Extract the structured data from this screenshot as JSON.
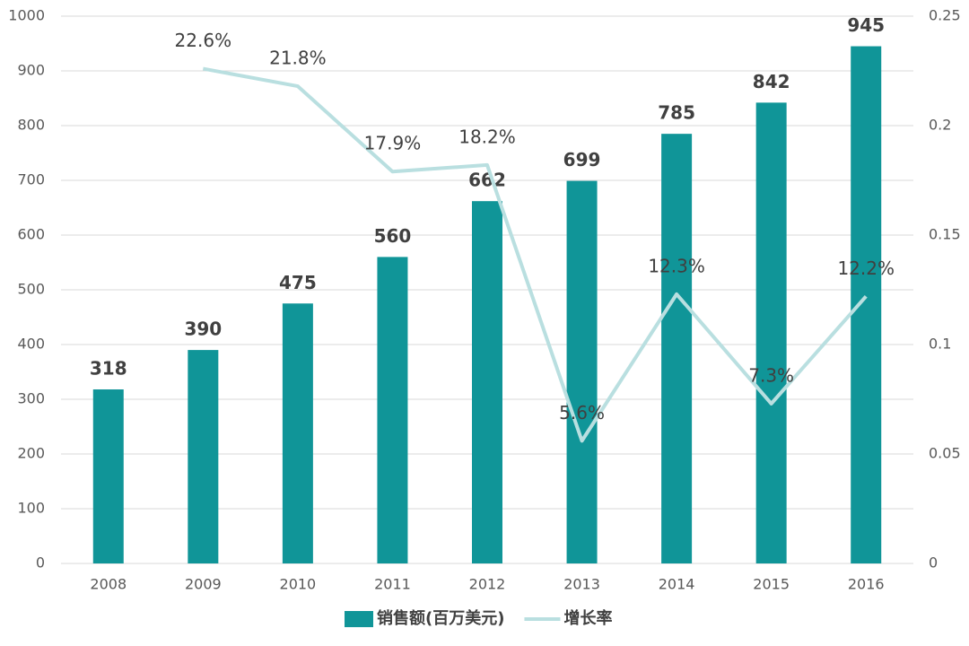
{
  "chart_data": {
    "type": "bar",
    "categories": [
      "2008",
      "2009",
      "2010",
      "2011",
      "2012",
      "2013",
      "2014",
      "2015",
      "2016"
    ],
    "series": [
      {
        "name": "销售额(百万美元)",
        "type": "bar",
        "color": "#109598",
        "values": [
          318,
          390,
          475,
          560,
          662,
          699,
          785,
          842,
          945
        ]
      },
      {
        "name": "增长率",
        "type": "line",
        "axis": "y2",
        "color": "#b9dfe0",
        "values": [
          null,
          0.226,
          0.218,
          0.179,
          0.182,
          0.056,
          0.123,
          0.073,
          0.122
        ],
        "value_labels": [
          null,
          "22.6%",
          "21.8%",
          "17.9%",
          "18.2%",
          "5.6%",
          "12.3%",
          "7.3%",
          "12.2%"
        ]
      }
    ],
    "ylim": [
      0,
      1000
    ],
    "yticks": [
      0,
      100,
      200,
      300,
      400,
      500,
      600,
      700,
      800,
      900,
      1000
    ],
    "y2lim": [
      0,
      0.25
    ],
    "y2ticks": [
      0,
      0.05,
      0.1,
      0.15,
      0.2,
      0.25
    ],
    "grid": true,
    "legend": "bottom"
  }
}
